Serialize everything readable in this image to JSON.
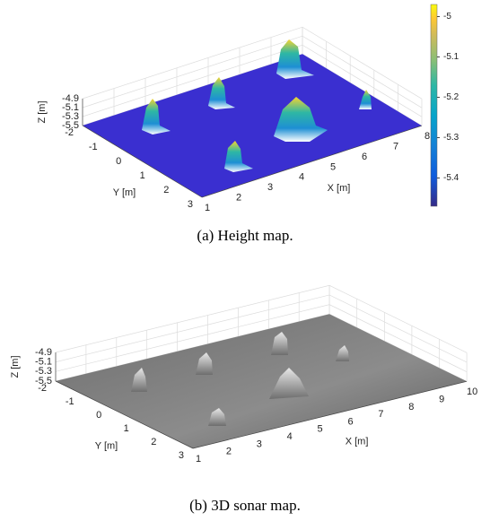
{
  "charts": [
    {
      "type": "surface",
      "xlabel": "X [m]",
      "ylabel": "Y [m]",
      "zlabel": "Z [m]",
      "xlim": [
        1,
        8
      ],
      "ylim": [
        -2,
        3
      ],
      "zlim": [
        -5.5,
        -4.9
      ],
      "xticks": [
        1,
        2,
        3,
        4,
        5,
        6,
        7,
        8
      ],
      "yticks": [
        -2,
        -1,
        0,
        1,
        2,
        3
      ],
      "zticks": [
        -4.9,
        -5.1,
        -5.3,
        -5.5
      ],
      "colormap": "parula",
      "clim": [
        -5.47,
        -4.97
      ],
      "cticks": [
        -5,
        -5.1,
        -5.2,
        -5.3,
        -5.4
      ],
      "caption": "(a) Height map."
    },
    {
      "type": "surface",
      "xlabel": "X [m]",
      "ylabel": "Y [m]",
      "zlabel": "Z [m]",
      "xlim": [
        1,
        10
      ],
      "ylim": [
        -2,
        3
      ],
      "zlim": [
        -5.5,
        -4.9
      ],
      "xticks": [
        1,
        2,
        3,
        4,
        5,
        6,
        7,
        8,
        9,
        10
      ],
      "yticks": [
        -2,
        -1,
        0,
        1,
        2,
        3
      ],
      "zticks": [
        -4.9,
        -5.1,
        -5.3,
        -5.5
      ],
      "colormap": "gray",
      "caption": "(b) 3D sonar map."
    }
  ]
}
